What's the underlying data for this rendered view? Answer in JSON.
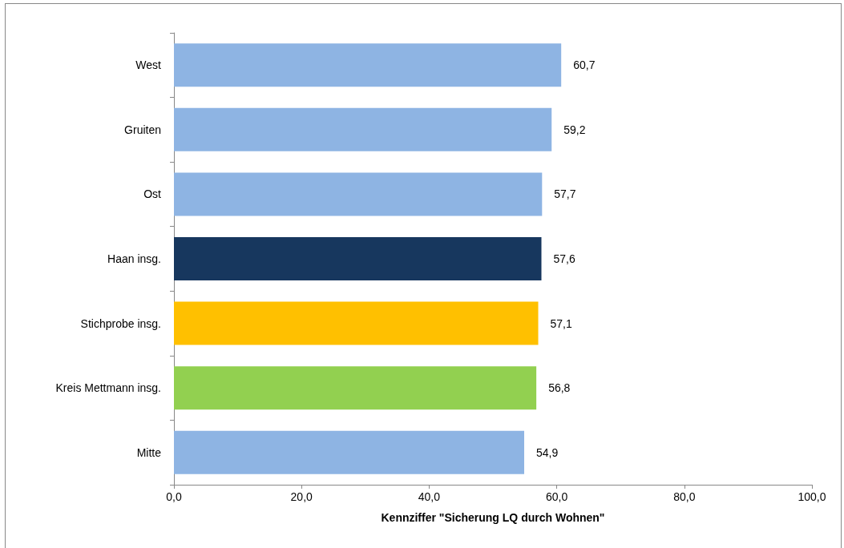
{
  "chart_data": {
    "type": "bar",
    "orientation": "horizontal",
    "xlabel": "Kennziffer \"Sicherung LQ durch Wohnen\"",
    "categories": [
      "West",
      "Gruiten",
      "Ost",
      "Haan insg.",
      "Stichprobe insg.",
      "Kreis Mettmann insg.",
      "Mitte"
    ],
    "values": [
      60.7,
      59.2,
      57.7,
      57.6,
      57.1,
      56.8,
      54.9
    ],
    "colors": [
      "#8eb4e3",
      "#8eb4e3",
      "#8eb4e3",
      "#17375e",
      "#ffc000",
      "#92d050",
      "#8eb4e3"
    ],
    "value_labels": [
      "60,7",
      "59,2",
      "57,7",
      "57,6",
      "57,1",
      "56,8",
      "54,9"
    ],
    "xlim": [
      0,
      100
    ],
    "xticks": [
      {
        "value": 0,
        "label": "0,0"
      },
      {
        "value": 20,
        "label": "20,0"
      },
      {
        "value": 40,
        "label": "40,0"
      },
      {
        "value": 60,
        "label": "60,0"
      },
      {
        "value": 80,
        "label": "80,0"
      },
      {
        "value": 100,
        "label": "100,0"
      }
    ],
    "grid": false
  }
}
